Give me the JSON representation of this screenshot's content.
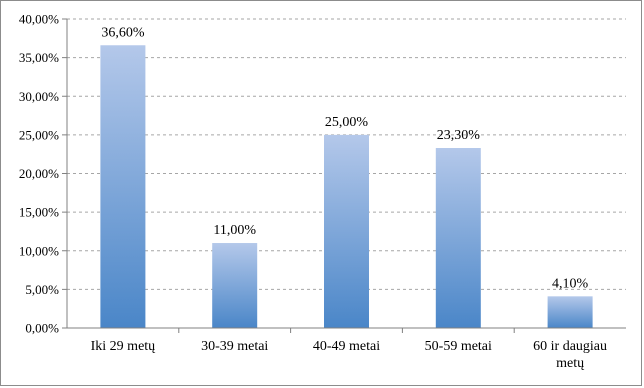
{
  "chart_data": {
    "type": "bar",
    "title": "",
    "xlabel": "",
    "ylabel": "",
    "categories": [
      [
        "Iki 29 metų"
      ],
      [
        "30-39 metai"
      ],
      [
        "40-49 metai"
      ],
      [
        "50-59 metai"
      ],
      [
        "60 ir daugiau",
        "metų"
      ]
    ],
    "values": [
      36.6,
      11.0,
      25.0,
      23.3,
      4.1
    ],
    "data_labels": [
      "36,60%",
      "11,00%",
      "25,00%",
      "23,30%",
      "4,10%"
    ],
    "ylim": [
      0,
      40
    ],
    "y_ticks": [
      0,
      5,
      10,
      15,
      20,
      25,
      30,
      35,
      40
    ],
    "y_tick_labels": [
      "0,00%",
      "5,00%",
      "10,00%",
      "15,00%",
      "20,00%",
      "25,00%",
      "30,00%",
      "35,00%",
      "40,00%"
    ],
    "grid": true,
    "legend": "none",
    "bar_color_top": "#b4c8ea",
    "bar_color_bottom": "#4a86c8"
  }
}
